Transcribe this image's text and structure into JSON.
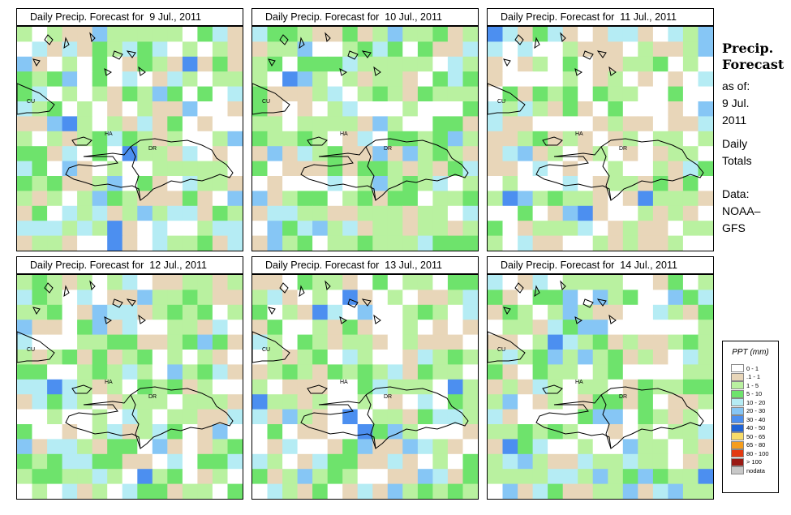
{
  "panels": [
    {
      "title": "Daily Precip. Forecast for  9 Jul., 2011",
      "seed": 11,
      "wet": 0.62
    },
    {
      "title": "Daily Precip. Forecast for  10 Jul., 2011",
      "seed": 23,
      "wet": 0.68
    },
    {
      "title": "Daily Precip. Forecast for  11 Jul., 2011",
      "seed": 37,
      "wet": 0.42
    },
    {
      "title": "Daily Precip. Forecast for  12 Jul., 2011",
      "seed": 41,
      "wet": 0.55
    },
    {
      "title": "Daily Precip. Forecast for  13 Jul., 2011",
      "seed": 53,
      "wet": 0.58
    },
    {
      "title": "Daily Precip. Forecast for  14 Jul., 2011",
      "seed": 67,
      "wet": 0.6
    }
  ],
  "map_labels": [
    "CU",
    "HA",
    "DR"
  ],
  "side_panel": {
    "title_line1": "Precip.",
    "title_line2": "Forecast",
    "asof_line1": "as of:",
    "asof_line2": "9 Jul.",
    "asof_line3": "2011",
    "totals_line1": "Daily",
    "totals_line2": "Totals",
    "data_line1": "Data:",
    "data_line2": "NOAA–",
    "data_line3": "GFS"
  },
  "legend": {
    "title": "PPT (mm)",
    "items": [
      {
        "label": "0 - 1",
        "color": "#ffffff"
      },
      {
        "label": ".1 - 1",
        "color": "#e8d6b9"
      },
      {
        "label": "1 - 5",
        "color": "#b9f1a0"
      },
      {
        "label": "5 - 10",
        "color": "#6ee36c"
      },
      {
        "label": "10 - 20",
        "color": "#b5ecf4"
      },
      {
        "label": "20 - 30",
        "color": "#86c6f5"
      },
      {
        "label": "30 - 40",
        "color": "#4c8ff0"
      },
      {
        "label": "40 - 50",
        "color": "#1f63d6"
      },
      {
        "label": "50 - 65",
        "color": "#f7dc6a"
      },
      {
        "label": "65 - 80",
        "color": "#f59d1c"
      },
      {
        "label": "80 - 100",
        "color": "#e33a12"
      },
      {
        "label": "> 100",
        "color": "#9a1a14"
      },
      {
        "label": "nodata",
        "color": "#c8c8c8"
      }
    ]
  }
}
